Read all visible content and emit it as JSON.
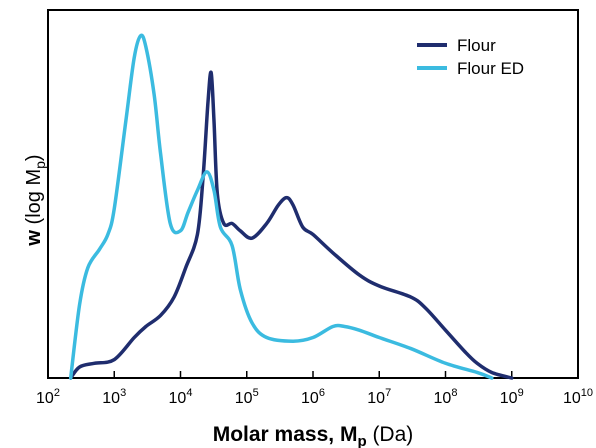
{
  "chart_data": {
    "type": "line",
    "xscale": "log",
    "xlim": [
      100,
      10000000000
    ],
    "ylim": [
      0,
      1
    ],
    "ytick_labels_shown": false,
    "grid": false,
    "legend_position": "top-right",
    "x_tick_labels": [
      {
        "base": "10",
        "exp": "2"
      },
      {
        "base": "10",
        "exp": "3"
      },
      {
        "base": "10",
        "exp": "4"
      },
      {
        "base": "10",
        "exp": "5"
      },
      {
        "base": "10",
        "exp": "6"
      },
      {
        "base": "10",
        "exp": "7"
      },
      {
        "base": "10",
        "exp": "8"
      },
      {
        "base": "10",
        "exp": "9"
      },
      {
        "base": "10",
        "exp": "10"
      }
    ],
    "xlabel": {
      "bold": "Molar mass, M",
      "sub": "p",
      "normal": " (Da)"
    },
    "ylabel": {
      "bold": "w",
      "normal": " (log M",
      "sub": "p",
      "close": ")"
    },
    "series": [
      {
        "name": "Flour",
        "color": "#1f2d6e",
        "x": [
          220,
          300,
          500,
          1000,
          2000,
          3000,
          5000,
          8000,
          12000,
          18000,
          22000,
          26000,
          29000,
          32000,
          36000,
          45000,
          60000,
          80000,
          120000,
          200000,
          300000,
          400000,
          500000,
          700000,
          1000000,
          2000000,
          5000000,
          10000000,
          30000000,
          50000000,
          100000000,
          200000000,
          300000000,
          500000000,
          1000000000
        ],
        "y": [
          0.0,
          0.03,
          0.04,
          0.05,
          0.11,
          0.14,
          0.17,
          0.22,
          0.3,
          0.39,
          0.55,
          0.75,
          0.83,
          0.7,
          0.5,
          0.42,
          0.42,
          0.4,
          0.38,
          0.42,
          0.47,
          0.49,
          0.47,
          0.41,
          0.39,
          0.34,
          0.28,
          0.25,
          0.22,
          0.19,
          0.13,
          0.07,
          0.04,
          0.015,
          0.0
        ]
      },
      {
        "name": "Flour ED",
        "color": "#3bbbe0",
        "x": [
          220,
          300,
          400,
          600,
          800,
          1000,
          1500,
          2000,
          2500,
          3000,
          4000,
          5000,
          7000,
          10000,
          13000,
          18000,
          25000,
          32000,
          40000,
          60000,
          80000,
          120000,
          200000,
          500000,
          1000000,
          2000000,
          3000000,
          5000000,
          10000000,
          30000000,
          100000000,
          300000000,
          500000000
        ],
        "y": [
          0.0,
          0.2,
          0.3,
          0.35,
          0.39,
          0.46,
          0.7,
          0.87,
          0.93,
          0.9,
          0.77,
          0.61,
          0.42,
          0.4,
          0.45,
          0.51,
          0.56,
          0.51,
          0.41,
          0.36,
          0.24,
          0.15,
          0.11,
          0.1,
          0.11,
          0.14,
          0.14,
          0.13,
          0.11,
          0.08,
          0.04,
          0.015,
          0.0
        ]
      }
    ]
  }
}
